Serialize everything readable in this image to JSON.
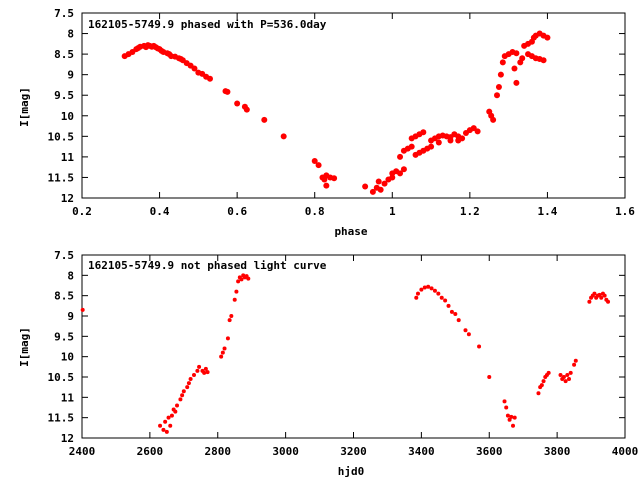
{
  "chart_data": [
    {
      "type": "scatter",
      "title": "162105-5749.9 phased with P=536.0day",
      "xlabel": "phase",
      "ylabel": "I[mag]",
      "xlim": [
        0.2,
        1.6
      ],
      "ylim": [
        12,
        7.5
      ],
      "y_inverted": true,
      "grid": false,
      "marker_color": "#ff0000",
      "xticks": [
        "0.2",
        "0.4",
        "0.6",
        "0.8",
        "1",
        "1.2",
        "1.4",
        "1.6"
      ],
      "yticks": [
        "7.5",
        "8",
        "8.5",
        "9",
        "9.5",
        "10",
        "10.5",
        "11",
        "11.5",
        "12"
      ],
      "points": [
        [
          0.31,
          8.55
        ],
        [
          0.32,
          8.5
        ],
        [
          0.33,
          8.45
        ],
        [
          0.34,
          8.38
        ],
        [
          0.345,
          8.35
        ],
        [
          0.35,
          8.32
        ],
        [
          0.36,
          8.3
        ],
        [
          0.365,
          8.33
        ],
        [
          0.37,
          8.28
        ],
        [
          0.375,
          8.3
        ],
        [
          0.38,
          8.32
        ],
        [
          0.385,
          8.3
        ],
        [
          0.39,
          8.33
        ],
        [
          0.395,
          8.36
        ],
        [
          0.4,
          8.38
        ],
        [
          0.405,
          8.42
        ],
        [
          0.41,
          8.45
        ],
        [
          0.42,
          8.48
        ],
        [
          0.425,
          8.5
        ],
        [
          0.43,
          8.55
        ],
        [
          0.44,
          8.56
        ],
        [
          0.45,
          8.6
        ],
        [
          0.455,
          8.62
        ],
        [
          0.46,
          8.65
        ],
        [
          0.47,
          8.72
        ],
        [
          0.48,
          8.78
        ],
        [
          0.49,
          8.85
        ],
        [
          0.5,
          8.95
        ],
        [
          0.51,
          8.98
        ],
        [
          0.52,
          9.05
        ],
        [
          0.53,
          9.1
        ],
        [
          0.57,
          9.4
        ],
        [
          0.575,
          9.42
        ],
        [
          0.6,
          9.7
        ],
        [
          0.62,
          9.78
        ],
        [
          0.625,
          9.85
        ],
        [
          0.67,
          10.1
        ],
        [
          0.72,
          10.5
        ],
        [
          0.8,
          11.1
        ],
        [
          0.81,
          11.2
        ],
        [
          0.82,
          11.5
        ],
        [
          0.825,
          11.55
        ],
        [
          0.83,
          11.45
        ],
        [
          0.84,
          11.5
        ],
        [
          0.85,
          11.52
        ],
        [
          0.83,
          11.7
        ],
        [
          0.93,
          11.72
        ],
        [
          0.95,
          11.85
        ],
        [
          0.96,
          11.75
        ],
        [
          0.965,
          11.6
        ],
        [
          0.97,
          11.8
        ],
        [
          0.98,
          11.65
        ],
        [
          0.99,
          11.55
        ],
        [
          1.0,
          11.5
        ],
        [
          1.0,
          11.4
        ],
        [
          1.01,
          11.35
        ],
        [
          1.02,
          11.4
        ],
        [
          1.03,
          11.3
        ],
        [
          1.02,
          11.0
        ],
        [
          1.03,
          10.85
        ],
        [
          1.04,
          10.8
        ],
        [
          1.05,
          10.75
        ],
        [
          1.05,
          10.55
        ],
        [
          1.06,
          10.5
        ],
        [
          1.07,
          10.45
        ],
        [
          1.08,
          10.4
        ],
        [
          1.06,
          10.95
        ],
        [
          1.07,
          10.9
        ],
        [
          1.08,
          10.85
        ],
        [
          1.09,
          10.8
        ],
        [
          1.1,
          10.75
        ],
        [
          1.1,
          10.6
        ],
        [
          1.11,
          10.55
        ],
        [
          1.12,
          10.5
        ],
        [
          1.13,
          10.48
        ],
        [
          1.14,
          10.5
        ],
        [
          1.15,
          10.52
        ],
        [
          1.16,
          10.45
        ],
        [
          1.17,
          10.5
        ],
        [
          1.18,
          10.55
        ],
        [
          1.19,
          10.42
        ],
        [
          1.2,
          10.35
        ],
        [
          1.21,
          10.3
        ],
        [
          1.22,
          10.38
        ],
        [
          1.17,
          10.6
        ],
        [
          1.15,
          10.6
        ],
        [
          1.12,
          10.65
        ],
        [
          1.25,
          9.9
        ],
        [
          1.255,
          10.0
        ],
        [
          1.26,
          10.1
        ],
        [
          1.27,
          9.5
        ],
        [
          1.275,
          9.3
        ],
        [
          1.28,
          9.0
        ],
        [
          1.285,
          8.7
        ],
        [
          1.29,
          8.55
        ],
        [
          1.3,
          8.5
        ],
        [
          1.31,
          8.45
        ],
        [
          1.32,
          8.48
        ],
        [
          1.315,
          8.85
        ],
        [
          1.32,
          9.2
        ],
        [
          1.33,
          8.7
        ],
        [
          1.335,
          8.6
        ],
        [
          1.34,
          8.3
        ],
        [
          1.35,
          8.25
        ],
        [
          1.36,
          8.2
        ],
        [
          1.365,
          8.1
        ],
        [
          1.37,
          8.05
        ],
        [
          1.38,
          8.0
        ],
        [
          1.39,
          8.05
        ],
        [
          1.4,
          8.1
        ],
        [
          1.36,
          8.55
        ],
        [
          1.37,
          8.6
        ],
        [
          1.38,
          8.62
        ],
        [
          1.39,
          8.65
        ],
        [
          1.35,
          8.5
        ]
      ],
      "annotation": "162105-5749.9 phased with P=536.0day"
    },
    {
      "type": "scatter",
      "title": "162105-5749.9 not phased light curve",
      "xlabel": "hjd0",
      "ylabel": "I[mag]",
      "xlim": [
        2400,
        4000
      ],
      "ylim": [
        12,
        7.5
      ],
      "y_inverted": true,
      "grid": false,
      "marker_color": "#ff0000",
      "xticks": [
        "2400",
        "2600",
        "2800",
        "3000",
        "3200",
        "3400",
        "3600",
        "3800",
        "4000"
      ],
      "yticks": [
        "7.5",
        "8",
        "8.5",
        "9",
        "9.5",
        "10",
        "10.5",
        "11",
        "11.5",
        "12"
      ],
      "points": [
        [
          2402,
          8.85
        ],
        [
          2630,
          11.7
        ],
        [
          2640,
          11.8
        ],
        [
          2645,
          11.6
        ],
        [
          2650,
          11.85
        ],
        [
          2655,
          11.5
        ],
        [
          2660,
          11.7
        ],
        [
          2665,
          11.45
        ],
        [
          2670,
          11.3
        ],
        [
          2675,
          11.35
        ],
        [
          2680,
          11.2
        ],
        [
          2690,
          11.05
        ],
        [
          2695,
          10.95
        ],
        [
          2700,
          10.85
        ],
        [
          2710,
          10.75
        ],
        [
          2715,
          10.65
        ],
        [
          2720,
          10.55
        ],
        [
          2730,
          10.45
        ],
        [
          2740,
          10.35
        ],
        [
          2745,
          10.25
        ],
        [
          2755,
          10.35
        ],
        [
          2760,
          10.4
        ],
        [
          2765,
          10.3
        ],
        [
          2770,
          10.38
        ],
        [
          2810,
          10.0
        ],
        [
          2815,
          9.9
        ],
        [
          2820,
          9.8
        ],
        [
          2830,
          9.55
        ],
        [
          2835,
          9.1
        ],
        [
          2840,
          9.0
        ],
        [
          2850,
          8.6
        ],
        [
          2855,
          8.4
        ],
        [
          2860,
          8.15
        ],
        [
          2865,
          8.05
        ],
        [
          2870,
          8.1
        ],
        [
          2875,
          8.0
        ],
        [
          2880,
          8.05
        ],
        [
          2885,
          8.02
        ],
        [
          2890,
          8.08
        ],
        [
          3385,
          8.55
        ],
        [
          3390,
          8.45
        ],
        [
          3400,
          8.35
        ],
        [
          3410,
          8.3
        ],
        [
          3420,
          8.28
        ],
        [
          3430,
          8.32
        ],
        [
          3440,
          8.38
        ],
        [
          3450,
          8.45
        ],
        [
          3460,
          8.55
        ],
        [
          3470,
          8.62
        ],
        [
          3480,
          8.75
        ],
        [
          3490,
          8.9
        ],
        [
          3500,
          8.95
        ],
        [
          3510,
          9.1
        ],
        [
          3530,
          9.35
        ],
        [
          3540,
          9.45
        ],
        [
          3570,
          9.75
        ],
        [
          3600,
          10.5
        ],
        [
          3645,
          11.1
        ],
        [
          3650,
          11.25
        ],
        [
          3655,
          11.45
        ],
        [
          3660,
          11.55
        ],
        [
          3665,
          11.48
        ],
        [
          3670,
          11.7
        ],
        [
          3675,
          11.5
        ],
        [
          3745,
          10.9
        ],
        [
          3750,
          10.75
        ],
        [
          3755,
          10.7
        ],
        [
          3760,
          10.6
        ],
        [
          3765,
          10.5
        ],
        [
          3770,
          10.45
        ],
        [
          3775,
          10.4
        ],
        [
          3810,
          10.45
        ],
        [
          3815,
          10.55
        ],
        [
          3820,
          10.5
        ],
        [
          3825,
          10.6
        ],
        [
          3830,
          10.45
        ],
        [
          3835,
          10.55
        ],
        [
          3840,
          10.4
        ],
        [
          3850,
          10.2
        ],
        [
          3855,
          10.1
        ],
        [
          3895,
          8.65
        ],
        [
          3900,
          8.55
        ],
        [
          3905,
          8.5
        ],
        [
          3910,
          8.45
        ],
        [
          3915,
          8.55
        ],
        [
          3920,
          8.5
        ],
        [
          3925,
          8.48
        ],
        [
          3930,
          8.55
        ],
        [
          3935,
          8.45
        ],
        [
          3940,
          8.5
        ],
        [
          3945,
          8.6
        ],
        [
          3950,
          8.65
        ]
      ],
      "annotation": "162105-5749.9 not phased light curve"
    }
  ]
}
